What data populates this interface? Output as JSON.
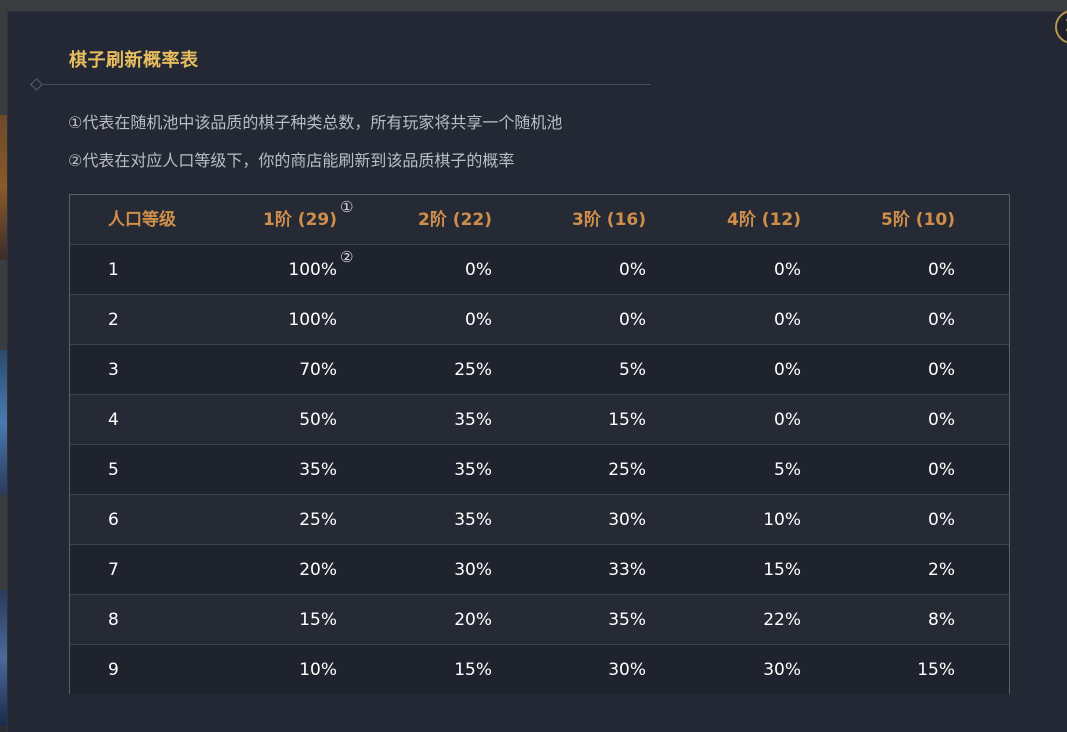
{
  "dialog": {
    "title": "棋子刷新概率表",
    "close_label": "×",
    "note1": "①代表在随机池中该品质的棋子种类总数，所有玩家将共享一个随机池",
    "note2": "②代表在对应人口等级下，你的商店能刷新到该品质棋子的概率"
  },
  "table": {
    "marker_header": "①",
    "marker_cell": "②",
    "headers": [
      "人口等级",
      "1阶 (29)",
      "2阶 (22)",
      "3阶 (16)",
      "4阶 (12)",
      "5阶 (10)"
    ],
    "rows": [
      [
        "1",
        "100%",
        "0%",
        "0%",
        "0%",
        "0%"
      ],
      [
        "2",
        "100%",
        "0%",
        "0%",
        "0%",
        "0%"
      ],
      [
        "3",
        "70%",
        "25%",
        "5%",
        "0%",
        "0%"
      ],
      [
        "4",
        "50%",
        "35%",
        "15%",
        "0%",
        "0%"
      ],
      [
        "5",
        "35%",
        "35%",
        "25%",
        "5%",
        "0%"
      ],
      [
        "6",
        "25%",
        "35%",
        "30%",
        "10%",
        "0%"
      ],
      [
        "7",
        "20%",
        "30%",
        "33%",
        "15%",
        "2%"
      ],
      [
        "8",
        "15%",
        "20%",
        "35%",
        "22%",
        "8%"
      ],
      [
        "9",
        "10%",
        "15%",
        "30%",
        "30%",
        "15%"
      ]
    ]
  },
  "colors": {
    "title": "#e7bd5f",
    "header_text": "#cf8f4a",
    "panel_bg": "#232834"
  }
}
